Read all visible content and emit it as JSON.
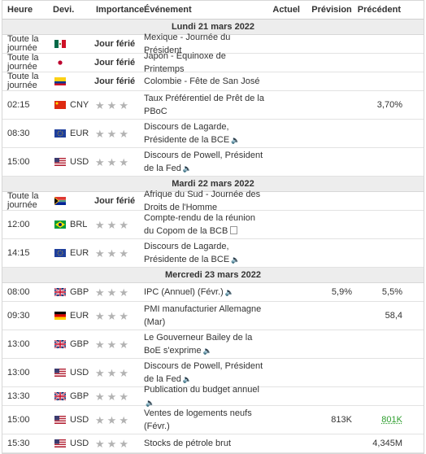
{
  "header": {
    "time": "Heure",
    "currency": "Devi.",
    "importance": "Importance",
    "event": "Événement",
    "actual": "Actuel",
    "forecast": "Prévision",
    "previous": "Précédent"
  },
  "days": [
    {
      "label": "Lundi 21 mars 2022",
      "rows": [
        {
          "time": "Toute la journée",
          "currency": "",
          "flag": "mx",
          "holiday": "Jour férié",
          "event": "Mexique - Journée du Président",
          "actual": "",
          "forecast": "",
          "previous": "",
          "tall": false
        },
        {
          "time": "Toute la journée",
          "currency": "",
          "flag": "jp",
          "holiday": "Jour férié",
          "event": "Japon - Equinoxe de Printemps",
          "actual": "",
          "forecast": "",
          "previous": "",
          "tall": false
        },
        {
          "time": "Toute la journée",
          "currency": "",
          "flag": "co",
          "holiday": "Jour férié",
          "event": "Colombie - Fête de San José",
          "actual": "",
          "forecast": "",
          "previous": "",
          "tall": false
        },
        {
          "time": "02:15",
          "currency": "CNY",
          "flag": "cn",
          "holiday": "",
          "event": "Taux Préférentiel de Prêt de la PBoC",
          "actual": "",
          "forecast": "",
          "previous": "3,70%",
          "tall": true,
          "icon": ""
        },
        {
          "time": "08:30",
          "currency": "EUR",
          "flag": "eu",
          "holiday": "",
          "event": "Discours de Lagarde, Présidente de la BCE",
          "actual": "",
          "forecast": "",
          "previous": "",
          "tall": true,
          "icon": "speaker"
        },
        {
          "time": "15:00",
          "currency": "USD",
          "flag": "us",
          "holiday": "",
          "event": "Discours de Powell, Président de la Fed",
          "actual": "",
          "forecast": "",
          "previous": "",
          "tall": true,
          "icon": "speaker"
        }
      ]
    },
    {
      "label": "Mardi 22 mars 2022",
      "rows": [
        {
          "time": "Toute la journée",
          "currency": "",
          "flag": "za",
          "holiday": "Jour férié",
          "event": "Afrique du Sud - Journée des Droits de l'Homme",
          "actual": "",
          "forecast": "",
          "previous": "",
          "tall": false
        },
        {
          "time": "12:00",
          "currency": "BRL",
          "flag": "br",
          "holiday": "",
          "event": "Compte-rendu de la réunion du Copom de la BCB",
          "actual": "",
          "forecast": "",
          "previous": "",
          "tall": true,
          "icon": "doc"
        },
        {
          "time": "14:15",
          "currency": "EUR",
          "flag": "eu",
          "holiday": "",
          "event": "Discours de Lagarde, Présidente de la BCE",
          "actual": "",
          "forecast": "",
          "previous": "",
          "tall": true,
          "icon": "speaker"
        }
      ]
    },
    {
      "label": "Mercredi 23 mars 2022",
      "rows": [
        {
          "time": "08:00",
          "currency": "GBP",
          "flag": "gb",
          "holiday": "",
          "event": "IPC (Annuel) (Févr.)",
          "actual": "",
          "forecast": "5,9%",
          "previous": "5,5%",
          "tall": false,
          "icon": "speaker",
          "prevBold": true
        },
        {
          "time": "09:30",
          "currency": "EUR",
          "flag": "de",
          "holiday": "",
          "event": "PMI manufacturier Allemagne (Mar)",
          "actual": "",
          "forecast": "",
          "previous": "58,4",
          "tall": true,
          "icon": ""
        },
        {
          "time": "13:00",
          "currency": "GBP",
          "flag": "gb",
          "holiday": "",
          "event": "Le Gouverneur Bailey de la BoE s'exprime",
          "actual": "",
          "forecast": "",
          "previous": "",
          "tall": true,
          "icon": "speaker"
        },
        {
          "time": "13:00",
          "currency": "USD",
          "flag": "us",
          "holiday": "",
          "event": "Discours de Powell, Président de la Fed",
          "actual": "",
          "forecast": "",
          "previous": "",
          "tall": true,
          "icon": "speaker"
        },
        {
          "time": "13:30",
          "currency": "GBP",
          "flag": "gb",
          "holiday": "",
          "event": "Publication du budget annuel",
          "actual": "",
          "forecast": "",
          "previous": "",
          "tall": false,
          "icon": "speaker"
        },
        {
          "time": "15:00",
          "currency": "USD",
          "flag": "us",
          "holiday": "",
          "event": "Ventes de logements neufs (Févr.)",
          "actual": "",
          "forecast": "813K",
          "previous": "801K",
          "tall": true,
          "icon": "",
          "prevGreen": true
        },
        {
          "time": "15:30",
          "currency": "USD",
          "flag": "us",
          "holiday": "",
          "event": "Stocks de pétrole brut",
          "actual": "",
          "forecast": "",
          "previous": "4,345M",
          "tall": false,
          "icon": ""
        }
      ]
    }
  ],
  "colors": {
    "dayBg": "#ededed",
    "star": "#b3b3b3",
    "green": "#2e9e2e"
  }
}
